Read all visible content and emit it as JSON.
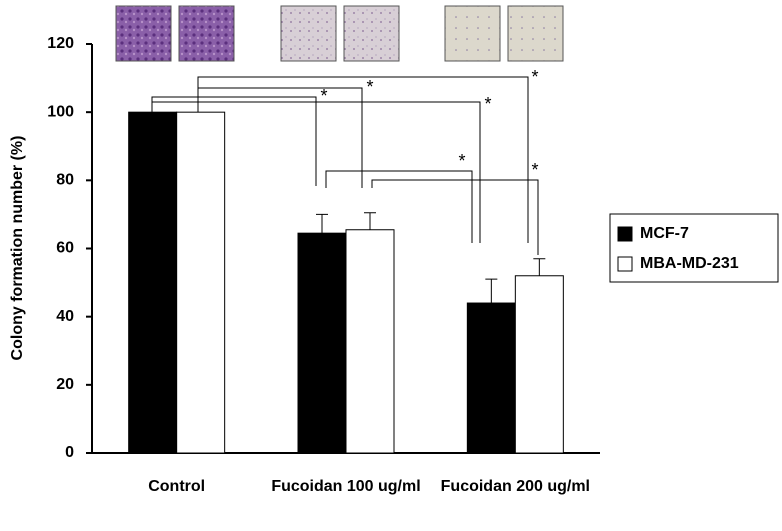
{
  "chart_data": {
    "type": "bar",
    "y_label": "Colony formation number (%)",
    "categories": [
      "Control",
      "Fucoidan 100 ug/ml",
      "Fucoidan 200 ug/ml"
    ],
    "series": [
      {
        "name": "MCF-7",
        "color": "#000000",
        "values": [
          100,
          64.5,
          44
        ],
        "errors": [
          null,
          5.5,
          7
        ]
      },
      {
        "name": "MBA-MD-231",
        "color": "#ffffff",
        "values": [
          100,
          65.5,
          52
        ],
        "errors": [
          null,
          5,
          5
        ]
      }
    ],
    "ylim": [
      0,
      120
    ],
    "yticks": [
      0,
      20,
      40,
      60,
      80,
      100,
      120
    ],
    "annotations": [
      "*",
      "*",
      "*",
      "*",
      "*",
      "*"
    ],
    "legend": "right"
  }
}
